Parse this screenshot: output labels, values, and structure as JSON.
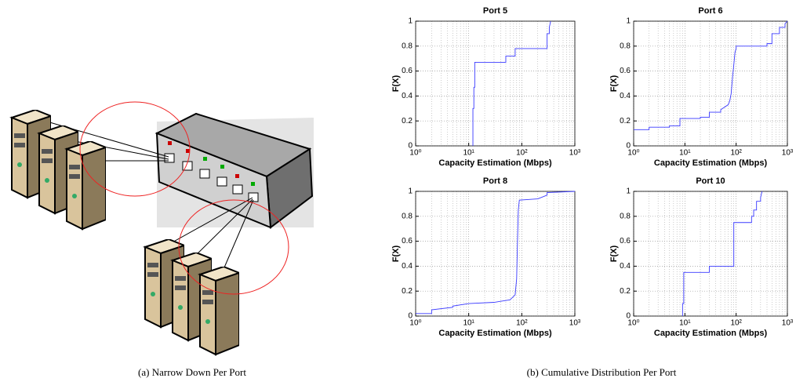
{
  "captions": {
    "left": "(a) Narrow Down Per Port",
    "right": "(b) Cumulative Distribution Per Port"
  },
  "chart_data": [
    {
      "type": "line",
      "title": "Port 5",
      "x_label": "Capacity Estimation (Mbps)",
      "y_label": "F(X)",
      "color": "#3a3aff",
      "x_scale": "log",
      "grid": true,
      "xlim": [
        1,
        1000
      ],
      "xticks": [
        {
          "value": 1,
          "label": "10⁰"
        },
        {
          "value": 10,
          "label": "10¹"
        },
        {
          "value": 100,
          "label": "10²"
        },
        {
          "value": 1000,
          "label": "10³"
        }
      ],
      "ylim": [
        0,
        1
      ],
      "yticks": [
        0,
        0.2,
        0.4,
        0.6,
        0.8,
        1
      ],
      "x": [
        12,
        12,
        12.5,
        12.5,
        13,
        13,
        50,
        50,
        75,
        75,
        300,
        300,
        330,
        330,
        350
      ],
      "values": [
        0,
        0.3,
        0.3,
        0.47,
        0.47,
        0.67,
        0.67,
        0.72,
        0.72,
        0.78,
        0.78,
        0.9,
        0.9,
        0.95,
        1
      ]
    },
    {
      "type": "line",
      "title": "Port 6",
      "x_label": "Capacity Estimation (Mbps)",
      "y_label": "F(X)",
      "color": "#3a3aff",
      "x_scale": "log",
      "grid": true,
      "xlim": [
        1,
        1000
      ],
      "xticks": [
        {
          "value": 1,
          "label": "10⁰"
        },
        {
          "value": 10,
          "label": "10¹"
        },
        {
          "value": 100,
          "label": "10²"
        },
        {
          "value": 1000,
          "label": "10³"
        }
      ],
      "ylim": [
        0,
        1
      ],
      "yticks": [
        0,
        0.2,
        0.4,
        0.6,
        0.8,
        1
      ],
      "x": [
        1,
        2,
        2,
        5,
        5,
        8,
        8,
        20,
        20,
        30,
        30,
        50,
        50,
        70,
        75,
        80,
        85,
        90,
        95,
        100,
        100,
        300,
        400,
        400,
        500,
        500,
        700,
        700,
        900,
        900,
        1000
      ],
      "values": [
        0.13,
        0.13,
        0.15,
        0.15,
        0.16,
        0.16,
        0.22,
        0.22,
        0.23,
        0.23,
        0.27,
        0.27,
        0.29,
        0.33,
        0.36,
        0.42,
        0.55,
        0.65,
        0.75,
        0.78,
        0.8,
        0.8,
        0.8,
        0.82,
        0.82,
        0.9,
        0.9,
        0.95,
        0.95,
        0.98,
        1
      ]
    },
    {
      "type": "line",
      "title": "Port 8",
      "x_label": "Capacity Estimation (Mbps)",
      "y_label": "F(X)",
      "color": "#3a3aff",
      "x_scale": "log",
      "grid": true,
      "xlim": [
        1,
        1000
      ],
      "xticks": [
        {
          "value": 1,
          "label": "10⁰"
        },
        {
          "value": 10,
          "label": "10¹"
        },
        {
          "value": 100,
          "label": "10²"
        },
        {
          "value": 1000,
          "label": "10³"
        }
      ],
      "ylim": [
        0,
        1
      ],
      "yticks": [
        0,
        0.2,
        0.4,
        0.6,
        0.8,
        1
      ],
      "x": [
        1,
        2,
        2,
        5,
        5,
        10,
        30,
        60,
        75,
        80,
        83,
        86,
        90,
        200,
        300,
        300,
        1000
      ],
      "values": [
        0.02,
        0.02,
        0.05,
        0.07,
        0.08,
        0.1,
        0.11,
        0.13,
        0.17,
        0.3,
        0.6,
        0.85,
        0.93,
        0.94,
        0.97,
        0.99,
        1
      ]
    },
    {
      "type": "line",
      "title": "Port 10",
      "x_label": "Capacity Estimation (Mbps)",
      "y_label": "F(X)",
      "color": "#3a3aff",
      "x_scale": "log",
      "grid": true,
      "xlim": [
        1,
        1000
      ],
      "xticks": [
        {
          "value": 1,
          "label": "10⁰"
        },
        {
          "value": 10,
          "label": "10¹"
        },
        {
          "value": 100,
          "label": "10²"
        },
        {
          "value": 1000,
          "label": "10³"
        }
      ],
      "ylim": [
        0,
        1
      ],
      "yticks": [
        0,
        0.2,
        0.4,
        0.6,
        0.8,
        1
      ],
      "x": [
        9,
        9,
        9.5,
        9.5,
        30,
        30,
        90,
        90,
        200,
        200,
        220,
        220,
        250,
        250,
        300,
        300,
        320
      ],
      "values": [
        0,
        0.1,
        0.1,
        0.35,
        0.35,
        0.4,
        0.4,
        0.75,
        0.75,
        0.8,
        0.8,
        0.85,
        0.85,
        0.92,
        0.92,
        0.95,
        1
      ]
    }
  ]
}
